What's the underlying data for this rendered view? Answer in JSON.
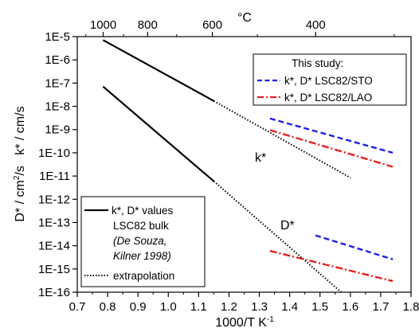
{
  "chart_data": {
    "type": "line",
    "x_axis": {
      "label": "1000/T K",
      "label_superscript": "-1",
      "range": [
        0.7,
        1.8
      ],
      "ticks": [
        0.7,
        0.8,
        0.9,
        1.0,
        1.1,
        1.2,
        1.3,
        1.4,
        1.5,
        1.6,
        1.7,
        1.8
      ],
      "tick_labels": [
        "0.7",
        "0.8",
        "0.9",
        "1.0",
        "1.1",
        "1.2",
        "1.3",
        "1.4",
        "1.5",
        "1.6",
        "1.7",
        "1.8"
      ]
    },
    "x_axis_top": {
      "unit": "°C",
      "ticks": [
        1000,
        800,
        600,
        400
      ],
      "tick_labels": [
        "1000",
        "800",
        "600",
        "400"
      ]
    },
    "y_axis": {
      "label_parts": [
        "D* / cm",
        "2",
        "/s   k* / cm/s"
      ],
      "scale": "log",
      "range": [
        1e-16,
        1e-05
      ],
      "tick_exponents": [
        -16,
        -15,
        -14,
        -13,
        -12,
        -11,
        -10,
        -9,
        -8,
        -7,
        -6,
        -5
      ],
      "tick_labels": [
        "1E-16",
        "1E-15",
        "1E-14",
        "1E-13",
        "1E-12",
        "1E-11",
        "1E-10",
        "1E-9",
        "1E-8",
        "1E-7",
        "1E-6",
        "1E-5"
      ]
    },
    "series": [
      {
        "style": "solid",
        "color": "#000000",
        "points": [
          [
            0.785,
            7.1e-06
          ],
          [
            1.15,
            1.7e-08
          ]
        ]
      },
      {
        "style": "dotted",
        "color": "#000000",
        "points": [
          [
            1.15,
            1.7e-08
          ],
          [
            1.6,
            8.5e-12
          ]
        ]
      },
      {
        "style": "solid",
        "color": "#000000",
        "points": [
          [
            0.785,
            7.1e-08
          ],
          [
            1.15,
            6e-12
          ]
        ]
      },
      {
        "style": "dotted",
        "color": "#000000",
        "points": [
          [
            1.15,
            6e-12
          ],
          [
            1.57,
            1e-16
          ]
        ]
      },
      {
        "style": "dashed",
        "color": "#1f1fe6",
        "points": [
          [
            1.335,
            3e-09
          ],
          [
            1.74,
            1e-10
          ]
        ]
      },
      {
        "style": "dashdot",
        "color": "#e61f1f",
        "points": [
          [
            1.335,
            9.5e-10
          ],
          [
            1.74,
            2.5e-11
          ]
        ]
      },
      {
        "style": "dashed",
        "color": "#1f1fe6",
        "points": [
          [
            1.485,
            2.8e-14
          ],
          [
            1.74,
            2.6e-15
          ]
        ]
      },
      {
        "style": "dashdot",
        "color": "#e61f1f",
        "points": [
          [
            1.335,
            6e-15
          ],
          [
            1.74,
            3e-16
          ]
        ]
      }
    ],
    "annotations": [
      {
        "text": "k*",
        "x": 1.48,
        "y": 6e-11
      },
      {
        "text": "D*",
        "x": 1.48,
        "y": 3.5e-14
      }
    ],
    "legend_top": {
      "title": "This study:",
      "entries": [
        {
          "label": "k*, D* LSC82/STO",
          "style": "dashed",
          "color": "#1f1fe6"
        },
        {
          "label": "k*, D* LSC82/LAO",
          "style": "dashdot",
          "color": "#e61f1f"
        }
      ]
    },
    "legend_bottom": {
      "entries": [
        {
          "style": "solid",
          "lines": [
            "k*, D* values",
            "LSC82 bulk"
          ]
        },
        {
          "style": "none",
          "lines": [
            "(De Souza,",
            "Kilner 1998)"
          ],
          "italic": true
        },
        {
          "style": "dotted",
          "lines": [
            "extrapolation"
          ]
        }
      ]
    }
  }
}
